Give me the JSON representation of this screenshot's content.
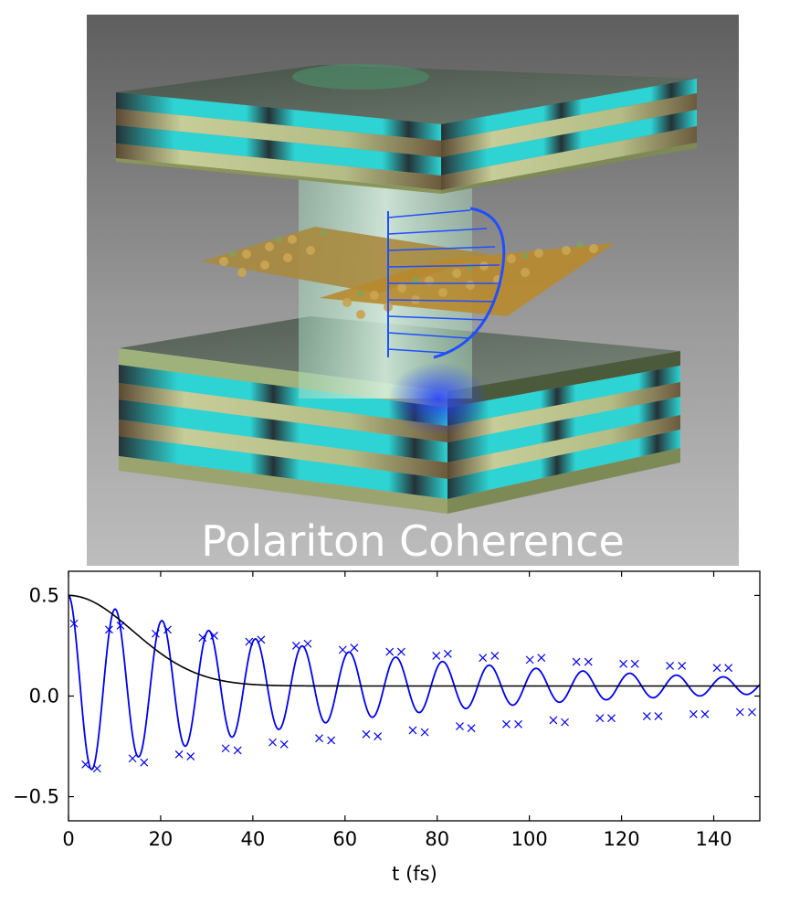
{
  "illustration": {
    "caption": "Polariton Coherence",
    "colors": {
      "background_top": "#5e5e5e",
      "background_bottom": "#b9b9b9",
      "mirror_cyan": "#2ed3d3",
      "mirror_cream": "#b9c28a",
      "mirror_dark": "#243236",
      "field_arrows": "#1f4fff",
      "molecules": "#b8892d",
      "cavity_mode": "#bfe6cf"
    },
    "icons": [
      "bragg-mirror-top",
      "bragg-mirror-bottom",
      "molecular-layer",
      "cavity-mode-column",
      "field-profile-arrows"
    ]
  },
  "chart_data": {
    "type": "line",
    "xlabel": "t (fs)",
    "ylabel": "",
    "xlim": [
      0,
      150
    ],
    "ylim": [
      -0.62,
      0.62
    ],
    "xticks": [
      0,
      20,
      40,
      60,
      80,
      100,
      120,
      140
    ],
    "yticks": [
      -0.5,
      0.0,
      0.5
    ],
    "xtick_labels": [
      "0",
      "20",
      "40",
      "60",
      "80",
      "100",
      "120",
      "140"
    ],
    "ytick_labels": [
      "−0.5",
      "0.0",
      "0.5"
    ],
    "grid": false,
    "legend": "none",
    "series": [
      {
        "style": "line",
        "color": "#0000ee",
        "model": {
          "offset": 0.05,
          "amplitude": 0.45,
          "period_fs": 10.15,
          "decay_time_fs": 62
        },
        "x": [
          0,
          2.5,
          5,
          7.5,
          10,
          12.5,
          15,
          17.5,
          20,
          22.5,
          25,
          27.5,
          30,
          32.5,
          35,
          37.5,
          40,
          42.5,
          45,
          47.5,
          50,
          52.5,
          55,
          57.5,
          60,
          62.5,
          65,
          67.5,
          70,
          72.5,
          75,
          77.5,
          80,
          82.5,
          85,
          87.5,
          90,
          92.5,
          95,
          97.5,
          100,
          102.5,
          105,
          107.5,
          110,
          112.5,
          115,
          117.5,
          120,
          122.5,
          125,
          127.5,
          130,
          132.5,
          135,
          137.5,
          140,
          142.5,
          145,
          147.5,
          150
        ],
        "y": [
          0.5,
          0.06,
          -0.47,
          0.02,
          0.48,
          0.05,
          -0.44,
          0.0,
          0.43,
          0.07,
          -0.4,
          0.03,
          0.4,
          0.06,
          -0.37,
          0.02,
          0.37,
          0.06,
          -0.33,
          0.04,
          0.34,
          0.05,
          -0.3,
          0.05,
          0.32,
          0.06,
          -0.29,
          0.05,
          0.3,
          0.05,
          -0.28,
          0.06,
          0.28,
          0.05,
          -0.27,
          0.05,
          0.27,
          0.05,
          -0.25,
          0.06,
          0.25,
          0.05,
          -0.24,
          0.05,
          0.23,
          0.05,
          -0.23,
          0.05,
          0.22,
          0.05,
          -0.21,
          0.05,
          0.2,
          0.05,
          -0.19,
          0.05,
          0.19,
          0.05,
          -0.18,
          0.04,
          0.06
        ]
      },
      {
        "style": "markers",
        "marker": "x",
        "color": "#0000ee",
        "x": [
          1.2,
          3.7,
          6.2,
          8.8,
          11.3,
          13.9,
          16.4,
          18.9,
          21.5,
          24.0,
          26.5,
          29.1,
          31.6,
          34.1,
          36.7,
          39.2,
          41.8,
          44.3,
          46.8,
          49.4,
          51.9,
          54.4,
          57.0,
          59.5,
          62.0,
          64.6,
          67.1,
          69.7,
          72.2,
          74.7,
          77.3,
          79.8,
          82.3,
          84.9,
          87.4,
          89.9,
          92.5,
          95.0,
          97.6,
          100.1,
          102.6,
          105.2,
          107.7,
          110.2,
          112.8,
          115.3,
          117.8,
          120.4,
          122.9,
          125.5,
          128.0,
          130.5,
          133.1,
          135.6,
          138.1,
          140.7,
          143.2,
          145.7,
          148.3
        ],
        "y": [
          0.36,
          -0.34,
          -0.36,
          0.33,
          0.35,
          -0.31,
          -0.33,
          0.31,
          0.33,
          -0.29,
          -0.3,
          0.29,
          0.3,
          -0.26,
          -0.27,
          0.27,
          0.28,
          -0.23,
          -0.24,
          0.25,
          0.26,
          -0.21,
          -0.22,
          0.23,
          0.24,
          -0.19,
          -0.2,
          0.22,
          0.22,
          -0.17,
          -0.18,
          0.2,
          0.21,
          -0.15,
          -0.16,
          0.19,
          0.2,
          -0.14,
          -0.14,
          0.18,
          0.19,
          -0.12,
          -0.13,
          0.17,
          0.17,
          -0.11,
          -0.11,
          0.16,
          0.16,
          -0.1,
          -0.1,
          0.15,
          0.15,
          -0.09,
          -0.09,
          0.14,
          0.14,
          -0.08,
          -0.08
        ]
      },
      {
        "style": "line",
        "color": "#000000",
        "model": {
          "baseline": 0.05,
          "initial": 0.5,
          "gaussian_width_fs": 14
        },
        "x": [
          0,
          5,
          10,
          15,
          20,
          25,
          30,
          35,
          40,
          45,
          50,
          60,
          70,
          80,
          90,
          100,
          110,
          120,
          130,
          140,
          150
        ],
        "y": [
          0.5,
          0.47,
          0.39,
          0.3,
          0.2,
          0.13,
          0.08,
          0.06,
          0.05,
          0.05,
          0.05,
          0.05,
          0.05,
          0.05,
          0.05,
          0.05,
          0.05,
          0.05,
          0.05,
          0.05,
          0.05
        ]
      }
    ]
  }
}
